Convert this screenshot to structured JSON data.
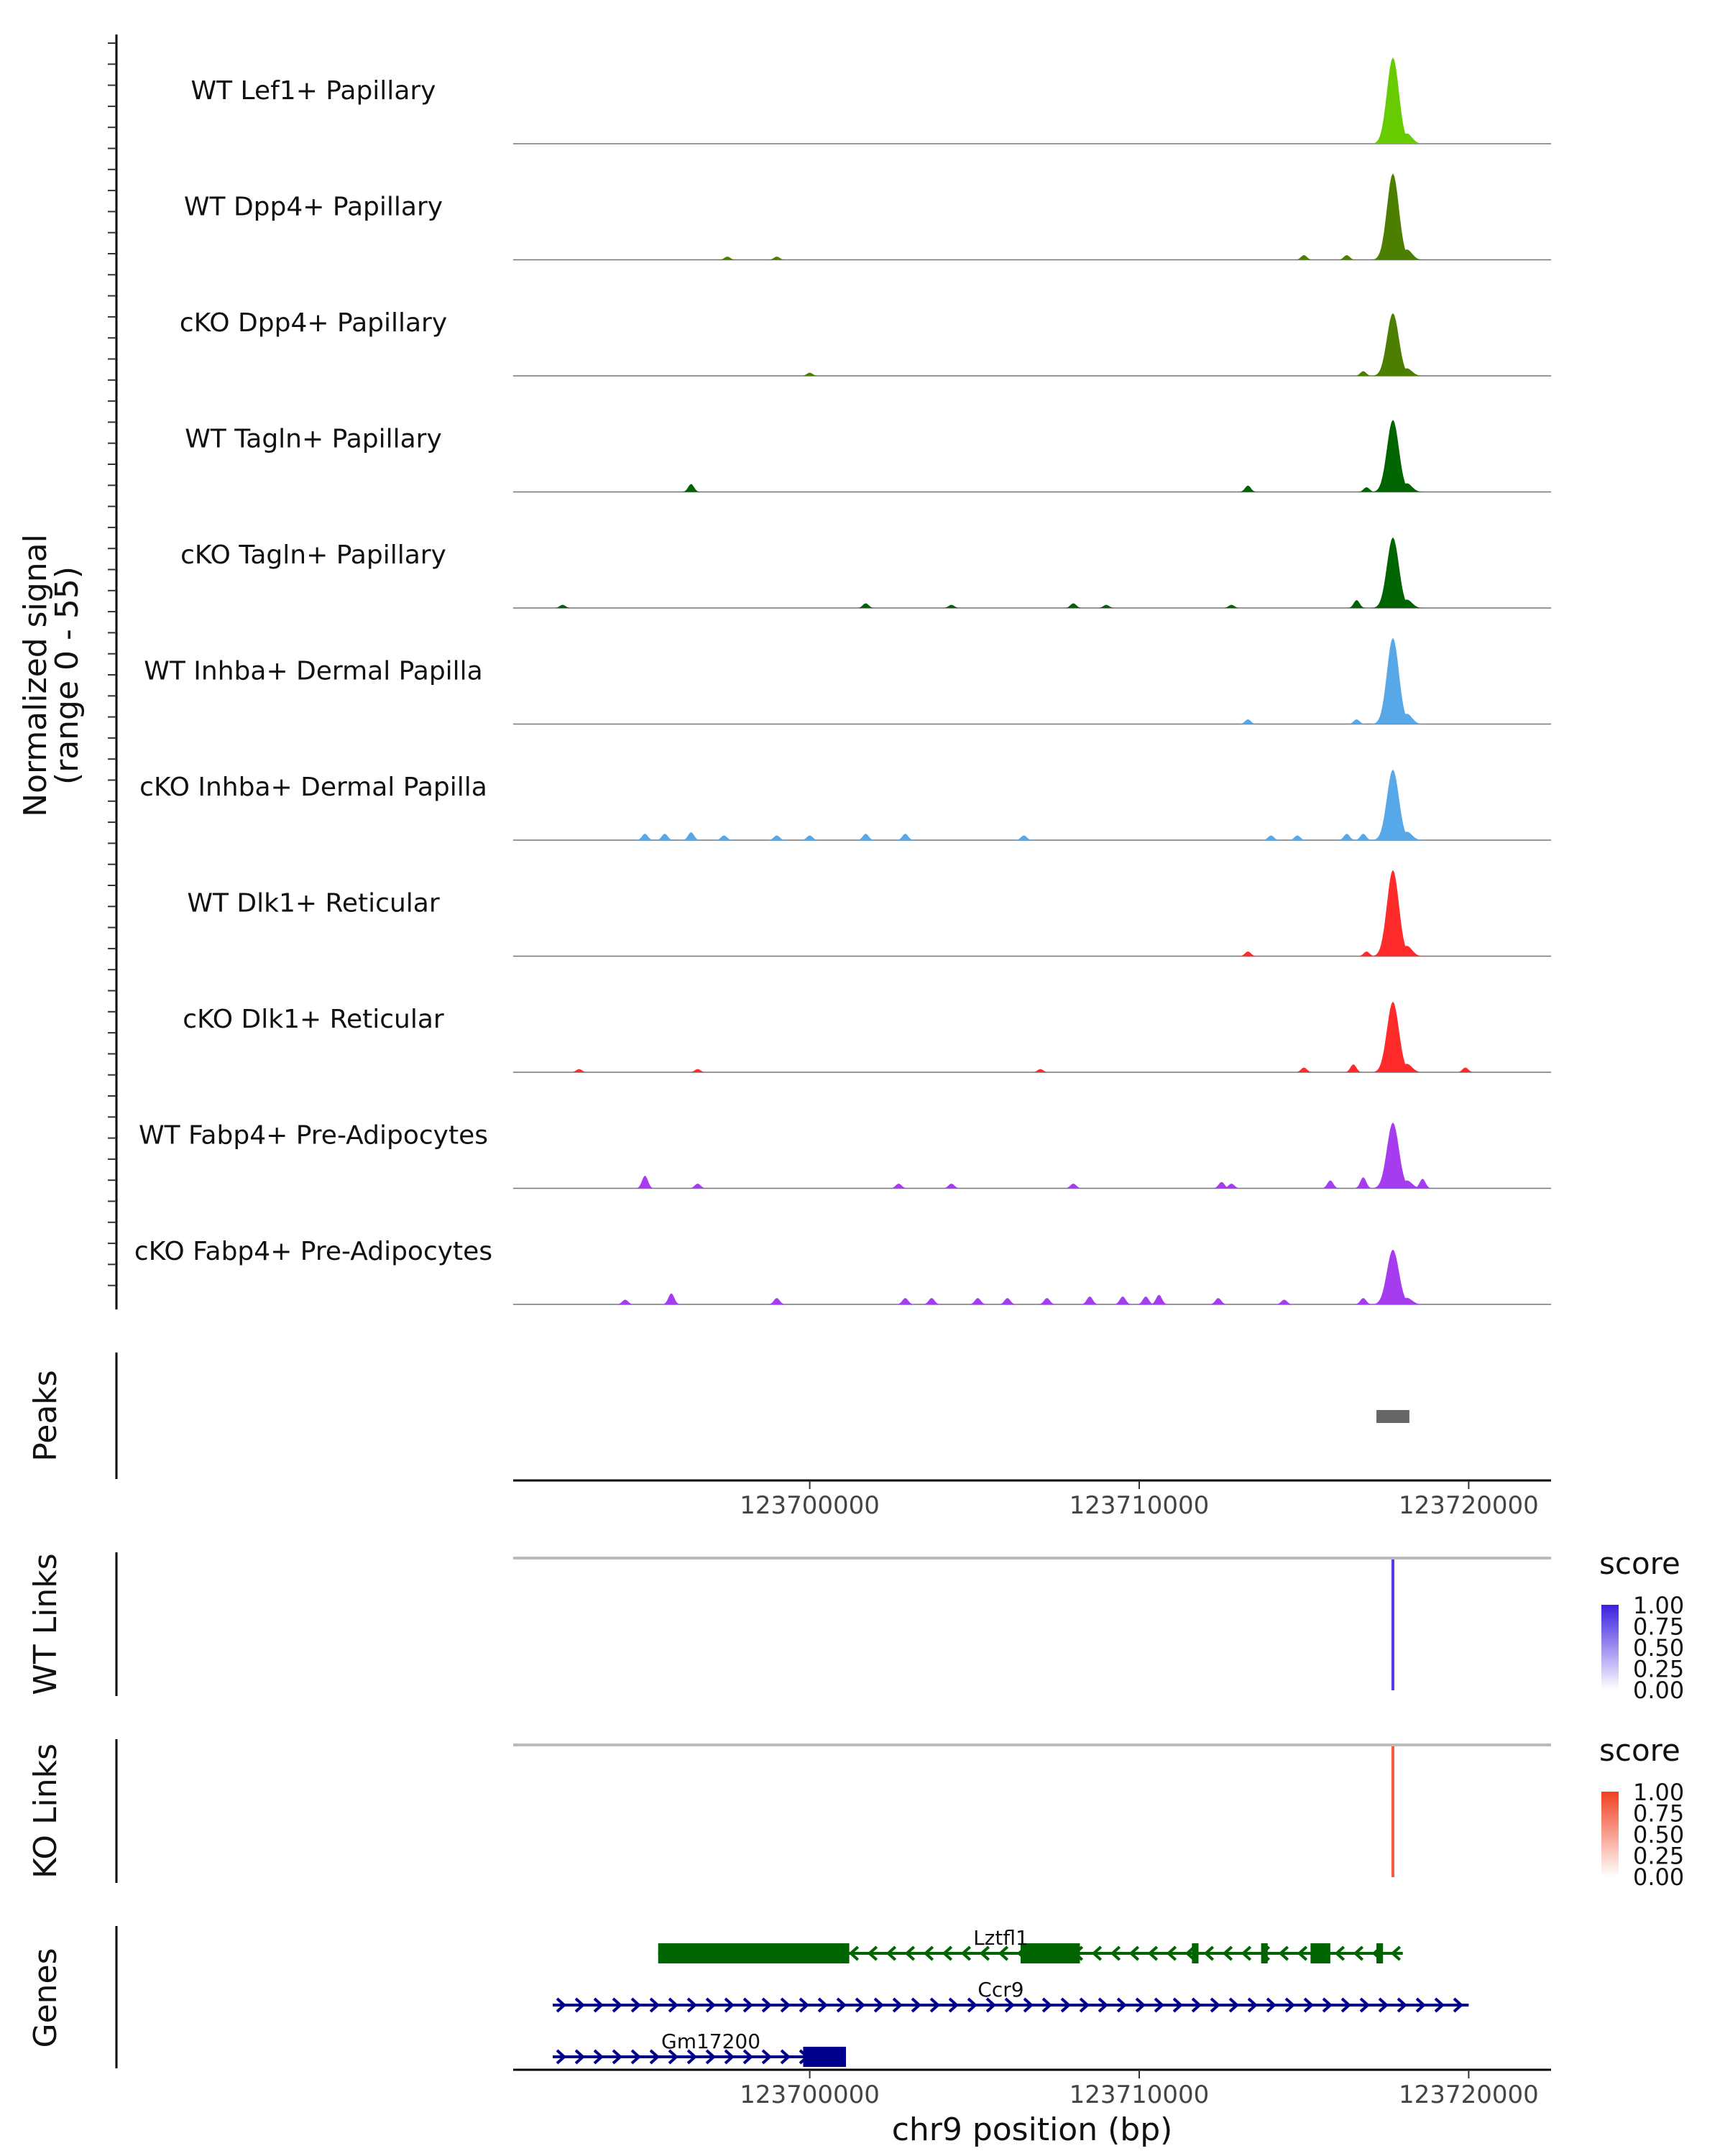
{
  "chart_data": {
    "type": "area",
    "title": "",
    "chromosome": "chr9",
    "xlim": [
      123691000,
      123722500
    ],
    "xlabel": "chr9 position (bp)",
    "x_ticks": [
      123700000,
      123710000,
      123720000
    ],
    "x_tick_labels": [
      "123700000",
      "123710000",
      "123720000"
    ],
    "coverage": {
      "ylabel_line1": "Normalized signal",
      "ylabel_line2": "(range 0 - 55)",
      "ylim": [
        0,
        55
      ],
      "series": [
        {
          "name": "WT Lef1+ Papillary",
          "color": "#66cc00",
          "peak_height": 55,
          "noise": []
        },
        {
          "name": "WT Dpp4+ Papillary",
          "color": "#4c7f00",
          "peak_height": 55,
          "noise": [
            [
              123697500,
              2
            ],
            [
              123699000,
              2
            ],
            [
              123715000,
              3
            ],
            [
              123716300,
              3
            ]
          ]
        },
        {
          "name": "cKO Dpp4+ Papillary",
          "color": "#4c7f00",
          "peak_height": 40,
          "noise": [
            [
              123700000,
              2
            ],
            [
              123716800,
              3
            ]
          ]
        },
        {
          "name": "WT Tagln+ Papillary",
          "color": "#006400",
          "peak_height": 46,
          "noise": [
            [
              123696400,
              5
            ],
            [
              123713300,
              4
            ],
            [
              123716900,
              3
            ]
          ]
        },
        {
          "name": "cKO Tagln+ Papillary",
          "color": "#006400",
          "peak_height": 45,
          "noise": [
            [
              123692500,
              2
            ],
            [
              123701700,
              3
            ],
            [
              123704300,
              2
            ],
            [
              123708000,
              3
            ],
            [
              123709000,
              2
            ],
            [
              123712800,
              2
            ],
            [
              123716600,
              5
            ]
          ]
        },
        {
          "name": "WT Inhba+ Dermal Papilla",
          "color": "#56a8e8",
          "peak_height": 55,
          "noise": [
            [
              123713300,
              3
            ],
            [
              123716600,
              3
            ]
          ]
        },
        {
          "name": "cKO Inhba+ Dermal Papilla",
          "color": "#56a8e8",
          "peak_height": 45,
          "noise": [
            [
              123695000,
              4
            ],
            [
              123695600,
              4
            ],
            [
              123696400,
              5
            ],
            [
              123697400,
              3
            ],
            [
              123699000,
              3
            ],
            [
              123700000,
              3
            ],
            [
              123701700,
              4
            ],
            [
              123702900,
              4
            ],
            [
              123706500,
              3
            ],
            [
              123714000,
              3
            ],
            [
              123714800,
              3
            ],
            [
              123716300,
              4
            ],
            [
              123716800,
              4
            ]
          ]
        },
        {
          "name": "WT Dlk1+ Reticular",
          "color": "#ff2a2a",
          "peak_height": 55,
          "noise": [
            [
              123713300,
              3
            ],
            [
              123716900,
              3
            ]
          ]
        },
        {
          "name": "cKO Dlk1+ Reticular",
          "color": "#ff2a2a",
          "peak_height": 45,
          "noise": [
            [
              123693000,
              2
            ],
            [
              123696600,
              2
            ],
            [
              123707000,
              2
            ],
            [
              123715000,
              3
            ],
            [
              123716500,
              5
            ],
            [
              123719900,
              3
            ]
          ]
        },
        {
          "name": "WT Fabp4+ Pre-Adipocytes",
          "color": "#a63cf0",
          "peak_height": 42,
          "noise": [
            [
              123695000,
              8
            ],
            [
              123696600,
              3
            ],
            [
              123702700,
              3
            ],
            [
              123704300,
              3
            ],
            [
              123708000,
              3
            ],
            [
              123712500,
              4
            ],
            [
              123712800,
              3
            ],
            [
              123715800,
              5
            ],
            [
              123716800,
              7
            ],
            [
              123718600,
              6
            ]
          ]
        },
        {
          "name": "cKO Fabp4+ Pre-Adipocytes",
          "color": "#a63cf0",
          "peak_height": 35,
          "noise": [
            [
              123694400,
              3
            ],
            [
              123695800,
              7
            ],
            [
              123699000,
              4
            ],
            [
              123702900,
              4
            ],
            [
              123703700,
              4
            ],
            [
              123705100,
              4
            ],
            [
              123706000,
              4
            ],
            [
              123707200,
              4
            ],
            [
              123708500,
              5
            ],
            [
              123709500,
              5
            ],
            [
              123710200,
              5
            ],
            [
              123710600,
              6
            ],
            [
              123712400,
              4
            ],
            [
              123714400,
              3
            ],
            [
              123716800,
              4
            ]
          ]
        }
      ],
      "peak_center": 123717700
    },
    "peaks": {
      "label": "Peaks",
      "color": "#666666",
      "regions": [
        [
          123717200,
          123718200
        ]
      ]
    },
    "links": [
      {
        "label": "WT Links",
        "legend_title": "score",
        "color_high": "#3a1fe0",
        "legend_ticks": [
          "1.00",
          "0.75",
          "0.50",
          "0.25",
          "0.00"
        ],
        "link_x": 123717700,
        "score": 0.8
      },
      {
        "label": "KO Links",
        "legend_title": "score",
        "color_high": "#f04020",
        "legend_ticks": [
          "1.00",
          "0.75",
          "0.50",
          "0.25",
          "0.00"
        ],
        "link_x": 123717700,
        "score": 0.75
      }
    ],
    "genes": {
      "label": "Genes",
      "tracks": [
        {
          "name": "Lztfl1",
          "strand": "-",
          "color": "#006400",
          "start": 123695400,
          "end": 123718000,
          "exons": [
            [
              123695400,
              123701200
            ],
            [
              123706400,
              123708200
            ],
            [
              123711600,
              123711800
            ],
            [
              123713700,
              123713900
            ],
            [
              123715200,
              123715800
            ],
            [
              123717200,
              123717400
            ]
          ]
        },
        {
          "name": "Ccr9",
          "strand": "+",
          "color": "#00008b",
          "start": 123692200,
          "end": 123720000,
          "exons": []
        },
        {
          "name": "Gm17200",
          "strand": "+",
          "color": "#00008b",
          "start": 123692200,
          "end": 123701100,
          "exons": [
            [
              123699800,
              123701100
            ]
          ]
        }
      ]
    }
  }
}
